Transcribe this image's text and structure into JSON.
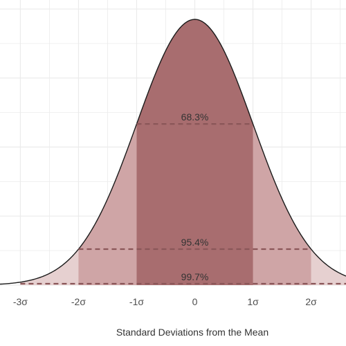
{
  "chart_data": {
    "type": "area",
    "distribution": "standard normal",
    "xlabel": "Standard Deviations from the Mean",
    "ylabel": "",
    "xlim": [
      -3.35,
      2.6
    ],
    "ylim": [
      0,
      0.4
    ],
    "grid": true,
    "x_ticks": [
      {
        "value": -3,
        "label": "-3σ"
      },
      {
        "value": -2,
        "label": "-2σ"
      },
      {
        "value": -1,
        "label": "-1σ"
      },
      {
        "value": 0,
        "label": "0"
      },
      {
        "value": 1,
        "label": "1σ"
      },
      {
        "value": 2,
        "label": "2σ"
      }
    ],
    "bands": [
      {
        "from": -3,
        "to": 3,
        "percent": 99.7,
        "label": "99.7%"
      },
      {
        "from": -2,
        "to": 2,
        "percent": 95.4,
        "label": "95.4%"
      },
      {
        "from": -1,
        "to": 1,
        "percent": 68.3,
        "label": "68.3%"
      }
    ],
    "colors": {
      "outer_fill": "#e6d0d0",
      "middle_fill": "#cfa5a6",
      "inner_fill": "#a86d6f",
      "curve": "#1a1a1a",
      "dashed_line": "#8a5658",
      "grid": "#ebebeb"
    }
  }
}
